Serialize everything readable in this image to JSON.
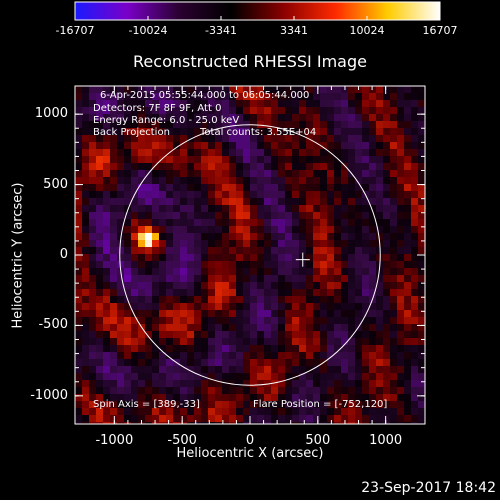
{
  "colorbar": {
    "ticks": [
      "-16707",
      "-10024",
      "-3341",
      "3341",
      "10024",
      "16707"
    ],
    "min": -16707,
    "max": 16707,
    "colors": [
      "#1a1aff",
      "#7a00c8",
      "#2a0030",
      "#000000",
      "#8b0000",
      "#ff2a00",
      "#ffcc00",
      "#ffffff"
    ]
  },
  "title": "Reconstructed RHESSI Image",
  "info": {
    "line1": "6-Apr-2015 05:55:44.000 to 06:05:44.000",
    "line2": "Detectors: 7F 8F 9F, Att 0",
    "line3": "Energy Range: 6.0 - 25.0 keV",
    "line4a": "Back Projection",
    "line4b": "Total counts: 3.55E+04"
  },
  "footer_left": "Spin Axis = [389,-33]",
  "footer_right": "Flare Position = [-752,120]",
  "axes": {
    "xlabel": "Heliocentric X (arcsec)",
    "ylabel": "Heliocentric Y (arcsec)",
    "xlim": [
      -1290,
      1290
    ],
    "ylim": [
      -1200,
      1200
    ],
    "xticks": [
      "-1000",
      "-500",
      "0",
      "500",
      "1000"
    ],
    "yticks": [
      "1000",
      "500",
      "0",
      "-500",
      "-1000"
    ]
  },
  "sun": {
    "center_x": 0,
    "center_y": 0,
    "radius_arcsec": 960
  },
  "spin_axis": {
    "x": 389,
    "y": -33
  },
  "flare": {
    "x": -752,
    "y": 120
  },
  "date": "23-Sep-2017 18:42"
}
